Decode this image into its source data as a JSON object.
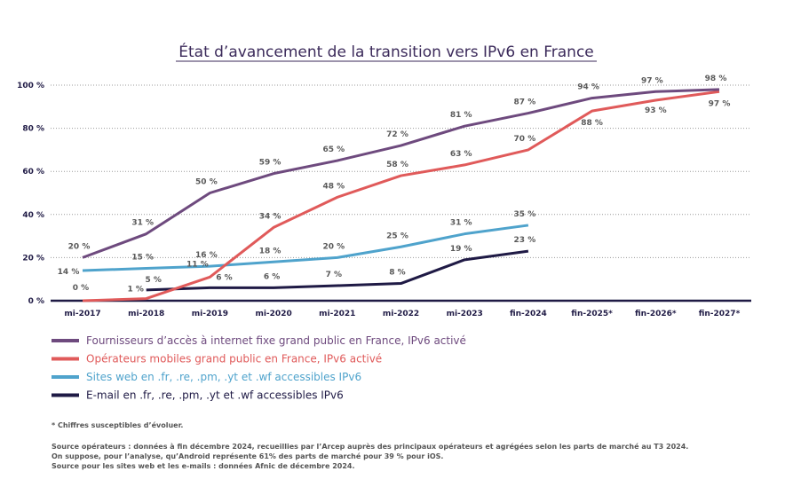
{
  "chart_data": {
    "type": "line",
    "title": "État d’avancement de la transition vers IPv6 en France",
    "categories": [
      "mi-2017",
      "mi-2018",
      "mi-2019",
      "mi-2020",
      "mi-2021",
      "mi-2022",
      "mi-2023",
      "fin-2024",
      "fin-2025*",
      "fin-2026*",
      "fin-2027*"
    ],
    "ylim": [
      0,
      100
    ],
    "yticks": [
      0,
      20,
      40,
      60,
      80,
      100
    ],
    "ytick_labels": [
      "0 %",
      "20 %",
      "40 %",
      "60 %",
      "80 %",
      "100 %"
    ],
    "grid": true,
    "legend_placement": "bottom-left",
    "series": [
      {
        "name": "Fournisseurs d’accès à internet fixe grand public en France, IPv6 activé",
        "color": "#6e4a7e",
        "values": [
          20,
          31,
          50,
          59,
          65,
          72,
          81,
          87,
          94,
          97,
          98
        ]
      },
      {
        "name": "Opérateurs mobiles grand public en France, IPv6 activé",
        "color": "#e05a5a",
        "values": [
          0,
          1,
          11,
          34,
          48,
          58,
          63,
          70,
          88,
          93,
          97
        ]
      },
      {
        "name": "Sites web en .fr, .re, .pm, .yt et .wf accessibles IPv6",
        "color": "#4fa3cc",
        "values": [
          14,
          15,
          16,
          18,
          20,
          25,
          31,
          35,
          null,
          null,
          null
        ]
      },
      {
        "name": "E-mail en .fr, .re, .pm, .yt et .wf accessibles IPv6",
        "color": "#1f1a45",
        "values": [
          null,
          5,
          6,
          6,
          7,
          8,
          19,
          23,
          null,
          null,
          null
        ]
      }
    ],
    "value_suffix": " %"
  },
  "notes": {
    "estimate": "* Chiffres susceptibles d’évoluer.",
    "source_lines": [
      "Source opérateurs : données à fin décembre 2024, recueillies par l’Arcep auprès des principaux opérateurs et agrégées selon  les parts de marché au T3 2024.",
      "On suppose, pour l’analyse, qu’Android représente 61% des parts de marché pour 39 % pour iOS.",
      "Source pour les sites web et les e-mails : données Afnic de décembre 2024."
    ]
  }
}
